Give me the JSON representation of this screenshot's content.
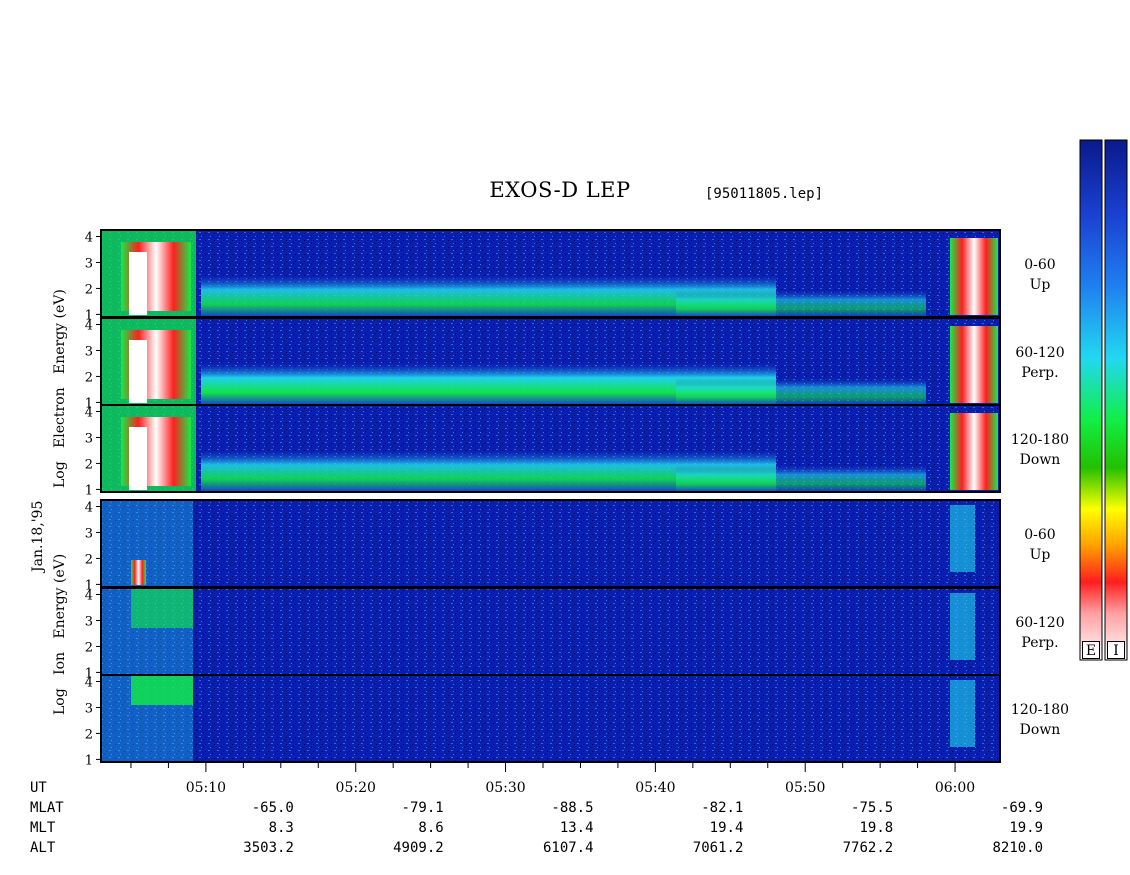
{
  "chart_data": {
    "type": "heatmap",
    "title": "EXOS-D LEP",
    "file_label": "[95011805.lep]",
    "date_label": "Jan.18,'95",
    "time_ticks": [
      "05:10",
      "05:20",
      "05:30",
      "05:40",
      "05:50",
      "06:00"
    ],
    "y_ticks": [
      "1",
      "2",
      "3",
      "4"
    ],
    "electron_title": [
      "Log",
      "Electron",
      "Energy",
      "(eV)"
    ],
    "ion_title": [
      "Log",
      "Ion",
      "Energy",
      "(eV)"
    ],
    "panels": [
      {
        "species": "Electron",
        "pitch": "0-60",
        "dir": "Up"
      },
      {
        "species": "Electron",
        "pitch": "60-120",
        "dir": "Perp."
      },
      {
        "species": "Electron",
        "pitch": "120-180",
        "dir": "Down"
      },
      {
        "species": "Ion",
        "pitch": "0-60",
        "dir": "Up"
      },
      {
        "species": "Ion",
        "pitch": "60-120",
        "dir": "Perp."
      },
      {
        "species": "Ion",
        "pitch": "120-180",
        "dir": "Down"
      }
    ],
    "orbit_labels": [
      "UT",
      "MLAT",
      "MLT",
      "ALT"
    ],
    "orbit": {
      "MLAT": [
        "-65.0",
        "-79.1",
        "-88.5",
        "-82.1",
        "-75.5",
        "-69.9"
      ],
      "MLT": [
        "8.3",
        "8.6",
        "13.4",
        "19.4",
        "19.8",
        "19.9"
      ],
      "ALT": [
        "3503.2",
        "4909.2",
        "6107.4",
        "7061.2",
        "7762.2",
        "8210.0"
      ]
    },
    "colorbar_labels": [
      "E",
      "I"
    ],
    "colors": {
      "background": "#0a1fb0",
      "colorbar": [
        "#0a1a8c",
        "#1a3fd0",
        "#1f7ff0",
        "#22d8f0",
        "#11ee44",
        "#22c000",
        "#ffff00",
        "#ffa000",
        "#ff1e1e",
        "#ff9fa0",
        "#ffffff"
      ]
    }
  }
}
